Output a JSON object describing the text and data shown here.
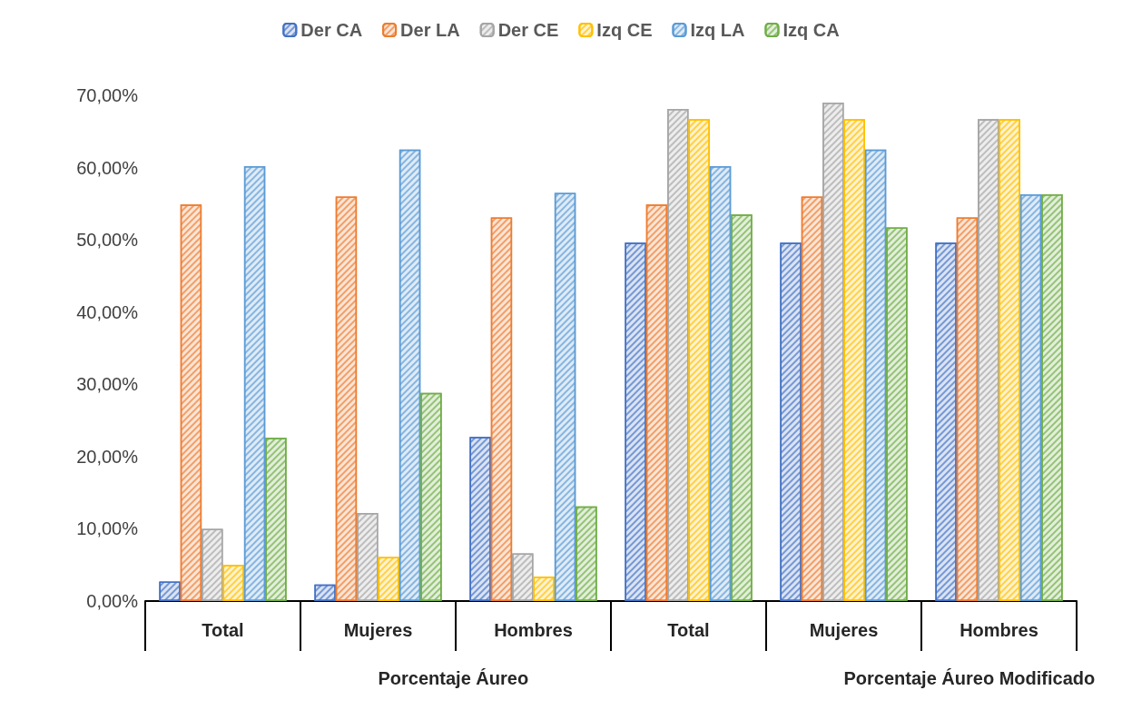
{
  "chart_data": {
    "type": "bar",
    "categories": [
      "Total",
      "Mujeres",
      "Hombres",
      "Total",
      "Mujeres",
      "Hombres"
    ],
    "series": [
      {
        "name": "Der CA",
        "color": "#4472c4",
        "values": [
          2.7,
          2.3,
          22.7,
          49.6,
          49.6,
          49.6
        ]
      },
      {
        "name": "Der LA",
        "color": "#ed7d31",
        "values": [
          54.9,
          56.0,
          53.1,
          54.9,
          56.0,
          53.1
        ]
      },
      {
        "name": "Der CE",
        "color": "#a5a5a5",
        "values": [
          10.0,
          12.2,
          6.6,
          68.1,
          69.0,
          66.7
        ]
      },
      {
        "name": "Izq CE",
        "color": "#ffc000",
        "values": [
          5.0,
          6.1,
          3.4,
          66.7,
          66.7,
          66.7
        ]
      },
      {
        "name": "Izq LA",
        "color": "#5b9bd5",
        "values": [
          60.2,
          62.5,
          56.5,
          60.2,
          62.5,
          56.3
        ]
      },
      {
        "name": "Izq CA",
        "color": "#70ad47",
        "values": [
          22.6,
          28.8,
          13.1,
          53.5,
          51.7,
          56.3
        ]
      }
    ],
    "ylim": [
      0,
      70
    ],
    "yticks": [
      {
        "value": 0,
        "label": "0,00%"
      },
      {
        "value": 10,
        "label": "10,00%"
      },
      {
        "value": 20,
        "label": "20,00%"
      },
      {
        "value": 30,
        "label": "30,00%"
      },
      {
        "value": 40,
        "label": "40,00%"
      },
      {
        "value": 50,
        "label": "50,00%"
      },
      {
        "value": 60,
        "label": "60,00%"
      },
      {
        "value": 70,
        "label": "70,00%"
      }
    ],
    "annotations": [
      "Porcentaje Áureo",
      "Porcentaje Áureo Modificado"
    ],
    "grid": false,
    "legend": "top"
  }
}
